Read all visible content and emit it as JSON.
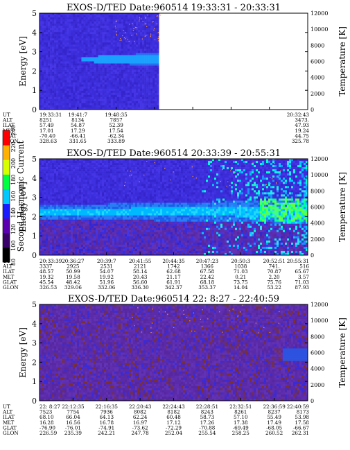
{
  "chart_data": [
    {
      "type": "heatmap",
      "title": "EXOS-D/TED   Date:960514   19:33:31 - 20:33:31",
      "ylabel": "Energy [eV]",
      "ylim": [
        0,
        5
      ],
      "yticks": [
        "0",
        "1",
        "2",
        "3",
        "4",
        "5"
      ],
      "y2label": "Temperature [K]",
      "y2lim": [
        0,
        12000
      ],
      "y2ticks": [
        "0",
        "2000",
        "4000",
        "6000",
        "8000",
        "10000",
        "12000"
      ],
      "data_extent": 0.445,
      "rows": [
        {
          "label": "UT",
          "values": [
            "19:33:31",
            "19:41:7",
            "19:48:35",
            "",
            "",
            "",
            "",
            "20:32:43"
          ]
        },
        {
          "label": "ALT",
          "values": [
            "8251",
            "8134",
            "7857",
            "",
            "",
            "",
            "",
            "3473."
          ]
        },
        {
          "label": "ILAT",
          "values": [
            "57.49",
            "54.87",
            "52.39",
            "",
            "",
            "",
            "",
            "47.93"
          ]
        },
        {
          "label": "MLT",
          "values": [
            "17.01",
            "17.29",
            "17.54",
            "",
            "",
            "",
            "",
            "19.24"
          ]
        },
        {
          "label": "GLAT",
          "values": [
            "-70.40",
            "-66.41",
            "-62.34",
            "",
            "",
            "",
            "",
            "44.75"
          ]
        },
        {
          "label": "GLON",
          "values": [
            "328.63",
            "331.65",
            "333.89",
            "",
            "",
            "",
            "",
            "325.78"
          ]
        }
      ]
    },
    {
      "type": "heatmap",
      "title": "EXOS-D/TED   Date:960514   20:33:39 - 20:55:31",
      "ylabel": "Energy [eV]",
      "ylim": [
        0,
        5
      ],
      "yticks": [
        "0",
        "1",
        "2",
        "3",
        "4",
        "5"
      ],
      "y2label": "Temperature [K]",
      "y2lim": [
        0,
        12000
      ],
      "y2ticks": [
        "0",
        "2000",
        "4000",
        "6000",
        "8000",
        "10000",
        "12000"
      ],
      "colorbar": {
        "label": "Second Harmonic Current",
        "ticks": [
          "80",
          "100",
          "120",
          "140",
          "160",
          "180",
          "200",
          "220",
          "240"
        ],
        "colors": [
          "#000000",
          "#3a006a",
          "#5a00b0",
          "#1a1aff",
          "#00c8ff",
          "#00ff40",
          "#d8ff00",
          "#ffb000",
          "#ff0000"
        ]
      },
      "rows": [
        {
          "label": "UT",
          "values": [
            "20:33:39",
            "20:36:27",
            "20:39:7",
            "20:41:55",
            "20:44:35",
            "20:47:23",
            "20:50:3",
            "20:52:51",
            "20:55:31"
          ]
        },
        {
          "label": "ALT",
          "values": [
            "3337",
            "2925",
            "2531",
            "2121",
            "1742",
            "1366",
            "1038",
            "741.",
            "516"
          ]
        },
        {
          "label": "ILAT",
          "values": [
            "48.57",
            "50.99",
            "54.07",
            "58.14",
            "62.68",
            "67.58",
            "71.03",
            "70.87",
            "65.67"
          ]
        },
        {
          "label": "MLT",
          "values": [
            "19.32",
            "19.58",
            "19.92",
            "20.43",
            "21.17",
            "22.42",
            "0.21",
            "2.20",
            "3.57"
          ]
        },
        {
          "label": "GLAT",
          "values": [
            "45.54",
            "48.42",
            "51.96",
            "56.60",
            "61.91",
            "68.18",
            "73.75",
            "75.76",
            "71.03"
          ]
        },
        {
          "label": "GLON",
          "values": [
            "326.53",
            "329.06",
            "332.06",
            "336.30",
            "342.37",
            "353.37",
            "14.04",
            "53.22",
            "87.93"
          ]
        }
      ]
    },
    {
      "type": "heatmap",
      "title": "EXOS-D/TED   Date:960514   22: 8:27 - 22:40:59",
      "ylabel": "Energy [eV]",
      "ylim": [
        0,
        5
      ],
      "yticks": [
        "0",
        "1",
        "2",
        "3",
        "4",
        "5"
      ],
      "y2label": "Temperature [K]",
      "y2lim": [
        0,
        12000
      ],
      "y2ticks": [
        "0",
        "2000",
        "4000",
        "6000",
        "8000",
        "10000",
        "12000"
      ],
      "rows": [
        {
          "label": "UT",
          "values": [
            "22: 8:27",
            "22:12:35",
            "22:16:35",
            "22:20:43",
            "22:24:43",
            "22:28:51",
            "22:32:51",
            "22:36:59",
            "22:40:59"
          ]
        },
        {
          "label": "ALT",
          "values": [
            "7523",
            "7754",
            "7936",
            "8082",
            "8182",
            "8243",
            "8261",
            "8237",
            "8173"
          ]
        },
        {
          "label": "ILAT",
          "values": [
            "68.10",
            "66.04",
            "64.13",
            "62.24",
            "60.48",
            "58.73",
            "57.10",
            "55.49",
            "53.98"
          ]
        },
        {
          "label": "MLT",
          "values": [
            "16.28",
            "16.56",
            "16.78",
            "16.97",
            "17.12",
            "17.26",
            "17.38",
            "17.49",
            "17.58"
          ]
        },
        {
          "label": "GLAT",
          "values": [
            "-76.90",
            "-76.01",
            "-74.91",
            "-73.62",
            "-72.29",
            "-70.88",
            "-69.49",
            "-68.05",
            "-66.67"
          ]
        },
        {
          "label": "GLON",
          "values": [
            "226.59",
            "235.39",
            "242.21",
            "247.78",
            "252.04",
            "255.54",
            "258.25",
            "260.52",
            "262.31"
          ]
        }
      ]
    }
  ]
}
